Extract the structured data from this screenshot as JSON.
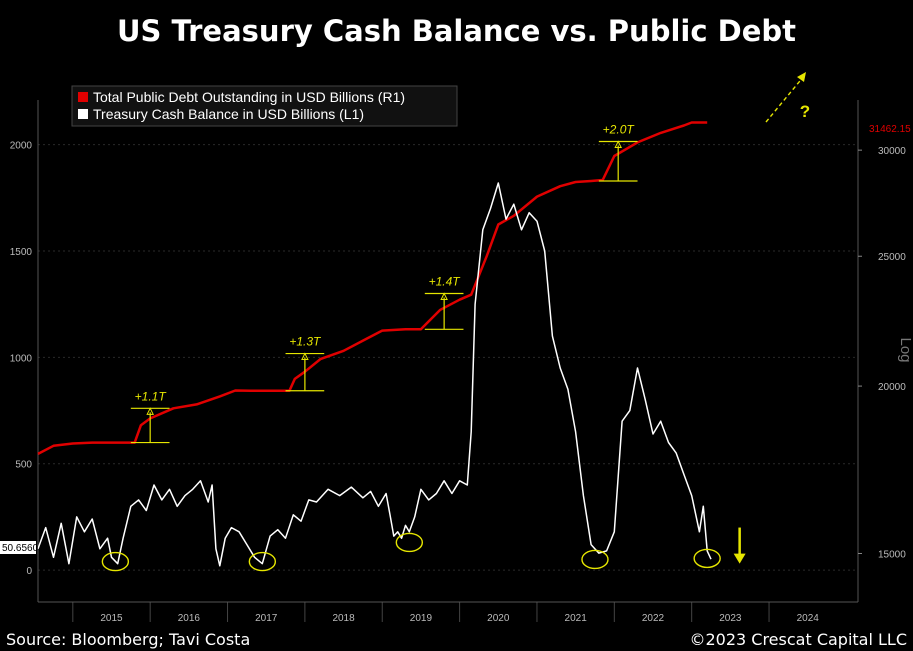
{
  "title": "US Treasury Cash Balance vs. Public Debt",
  "source": "Source: Bloomberg; Tavi Costa",
  "copyright": "©2023 Crescat Capital LLC",
  "colors": {
    "background": "#000000",
    "debt": "#e00000",
    "cash": "#ffffff",
    "annotation": "#e6e600",
    "grid": "#2a2a2a",
    "axis_text": "#bbbbbb"
  },
  "chart_data": {
    "type": "line",
    "legend": {
      "placement": "top-left",
      "entries": [
        {
          "label": "Total Public Debt Outstanding in USD Billions (R1)",
          "color": "#e00000"
        },
        {
          "label": "Treasury Cash Balance in USD Billions (L1)",
          "color": "#ffffff"
        }
      ]
    },
    "x_axis": {
      "range": [
        2014.55,
        2025.15
      ],
      "tick_labels": [
        "2015",
        "2016",
        "2017",
        "2018",
        "2019",
        "2020",
        "2021",
        "2022",
        "2023",
        "2024"
      ]
    },
    "left_axis": {
      "range": [
        -150,
        2210
      ],
      "ticks": [
        0,
        500,
        1000,
        1500,
        2000
      ],
      "tick_labels": [
        "0",
        "500",
        "1000",
        "1500",
        "2000"
      ],
      "last_value_label": "50.6560"
    },
    "right_axis": {
      "label": "Log",
      "scale": "log",
      "range": [
        13800,
        32700
      ],
      "ticks": [
        15000,
        20000,
        25000,
        30000
      ],
      "tick_labels": [
        "15000",
        "20000",
        "25000",
        "30000"
      ],
      "last_value_label": "31462.15"
    },
    "series": [
      {
        "name": "Total Public Debt Outstanding in USD Billions (R1)",
        "axis": "right",
        "points": [
          [
            2014.55,
            17800
          ],
          [
            2014.75,
            18050
          ],
          [
            2015.0,
            18120
          ],
          [
            2015.25,
            18150
          ],
          [
            2015.5,
            18150
          ],
          [
            2015.8,
            18150
          ],
          [
            2015.88,
            18700
          ],
          [
            2016.0,
            18920
          ],
          [
            2016.3,
            19250
          ],
          [
            2016.6,
            19380
          ],
          [
            2016.9,
            19650
          ],
          [
            2017.1,
            19850
          ],
          [
            2017.3,
            19840
          ],
          [
            2017.5,
            19840
          ],
          [
            2017.8,
            19840
          ],
          [
            2017.87,
            20250
          ],
          [
            2018.0,
            20500
          ],
          [
            2018.2,
            20950
          ],
          [
            2018.5,
            21250
          ],
          [
            2018.8,
            21700
          ],
          [
            2019.0,
            22000
          ],
          [
            2019.3,
            22050
          ],
          [
            2019.5,
            22050
          ],
          [
            2019.6,
            22350
          ],
          [
            2019.75,
            22800
          ],
          [
            2020.0,
            23200
          ],
          [
            2020.15,
            23400
          ],
          [
            2020.35,
            25000
          ],
          [
            2020.5,
            26400
          ],
          [
            2020.7,
            26800
          ],
          [
            2021.0,
            27700
          ],
          [
            2021.3,
            28200
          ],
          [
            2021.5,
            28400
          ],
          [
            2021.7,
            28450
          ],
          [
            2021.85,
            28500
          ],
          [
            2021.9,
            28900
          ],
          [
            2022.0,
            29700
          ],
          [
            2022.3,
            30400
          ],
          [
            2022.6,
            30900
          ],
          [
            2022.9,
            31300
          ],
          [
            2023.0,
            31460
          ],
          [
            2023.2,
            31462
          ]
        ]
      },
      {
        "name": "Treasury Cash Balance in USD Billions (L1)",
        "axis": "left",
        "points": [
          [
            2014.55,
            100
          ],
          [
            2014.65,
            200
          ],
          [
            2014.75,
            60
          ],
          [
            2014.85,
            220
          ],
          [
            2014.95,
            30
          ],
          [
            2015.05,
            250
          ],
          [
            2015.15,
            180
          ],
          [
            2015.25,
            240
          ],
          [
            2015.35,
            100
          ],
          [
            2015.45,
            150
          ],
          [
            2015.5,
            60
          ],
          [
            2015.58,
            30
          ],
          [
            2015.65,
            150
          ],
          [
            2015.75,
            300
          ],
          [
            2015.85,
            330
          ],
          [
            2015.95,
            280
          ],
          [
            2016.05,
            400
          ],
          [
            2016.15,
            330
          ],
          [
            2016.25,
            380
          ],
          [
            2016.35,
            300
          ],
          [
            2016.45,
            350
          ],
          [
            2016.55,
            380
          ],
          [
            2016.65,
            420
          ],
          [
            2016.75,
            320
          ],
          [
            2016.8,
            400
          ],
          [
            2016.85,
            100
          ],
          [
            2016.9,
            20
          ],
          [
            2016.97,
            150
          ],
          [
            2017.05,
            200
          ],
          [
            2017.15,
            180
          ],
          [
            2017.25,
            120
          ],
          [
            2017.35,
            60
          ],
          [
            2017.45,
            30
          ],
          [
            2017.55,
            160
          ],
          [
            2017.65,
            190
          ],
          [
            2017.75,
            150
          ],
          [
            2017.85,
            260
          ],
          [
            2017.95,
            230
          ],
          [
            2018.05,
            330
          ],
          [
            2018.15,
            320
          ],
          [
            2018.3,
            380
          ],
          [
            2018.45,
            350
          ],
          [
            2018.6,
            390
          ],
          [
            2018.75,
            340
          ],
          [
            2018.85,
            370
          ],
          [
            2018.95,
            300
          ],
          [
            2019.05,
            360
          ],
          [
            2019.1,
            260
          ],
          [
            2019.15,
            160
          ],
          [
            2019.2,
            180
          ],
          [
            2019.25,
            150
          ],
          [
            2019.3,
            210
          ],
          [
            2019.35,
            180
          ],
          [
            2019.42,
            250
          ],
          [
            2019.5,
            380
          ],
          [
            2019.6,
            330
          ],
          [
            2019.7,
            360
          ],
          [
            2019.8,
            420
          ],
          [
            2019.9,
            360
          ],
          [
            2020.0,
            420
          ],
          [
            2020.1,
            400
          ],
          [
            2020.15,
            650
          ],
          [
            2020.2,
            1250
          ],
          [
            2020.3,
            1600
          ],
          [
            2020.4,
            1700
          ],
          [
            2020.5,
            1820
          ],
          [
            2020.6,
            1650
          ],
          [
            2020.7,
            1720
          ],
          [
            2020.8,
            1600
          ],
          [
            2020.9,
            1680
          ],
          [
            2021.0,
            1640
          ],
          [
            2021.1,
            1500
          ],
          [
            2021.2,
            1100
          ],
          [
            2021.3,
            950
          ],
          [
            2021.4,
            850
          ],
          [
            2021.5,
            650
          ],
          [
            2021.6,
            350
          ],
          [
            2021.7,
            120
          ],
          [
            2021.8,
            80
          ],
          [
            2021.9,
            90
          ],
          [
            2022.0,
            180
          ],
          [
            2022.1,
            700
          ],
          [
            2022.2,
            750
          ],
          [
            2022.3,
            950
          ],
          [
            2022.4,
            800
          ],
          [
            2022.5,
            640
          ],
          [
            2022.6,
            700
          ],
          [
            2022.7,
            600
          ],
          [
            2022.8,
            550
          ],
          [
            2022.9,
            450
          ],
          [
            2023.0,
            350
          ],
          [
            2023.1,
            180
          ],
          [
            2023.15,
            300
          ],
          [
            2023.2,
            90
          ],
          [
            2023.25,
            51
          ]
        ]
      }
    ],
    "annotations": {
      "debt_jumps": [
        {
          "label": "+1.1T",
          "x": [
            2015.75,
            2016.25
          ],
          "low": 18150,
          "high": 19250
        },
        {
          "label": "+1.3T",
          "x": [
            2017.75,
            2018.25
          ],
          "low": 19840,
          "high": 21150
        },
        {
          "label": "+1.4T",
          "x": [
            2019.55,
            2020.05
          ],
          "low": 22050,
          "high": 23450
        },
        {
          "label": "+2.0T",
          "x": [
            2021.8,
            2022.3
          ],
          "low": 28450,
          "high": 30450
        }
      ],
      "cash_lows": [
        {
          "x": 2015.55,
          "y": 40
        },
        {
          "x": 2017.45,
          "y": 40
        },
        {
          "x": 2019.35,
          "y": 130
        },
        {
          "x": 2021.75,
          "y": 50
        },
        {
          "x": 2023.2,
          "y": 55
        }
      ],
      "up_arrow_label": "?",
      "down_arrow": {
        "x": 2023.62,
        "y_from": 200,
        "y_to": 40
      }
    }
  }
}
